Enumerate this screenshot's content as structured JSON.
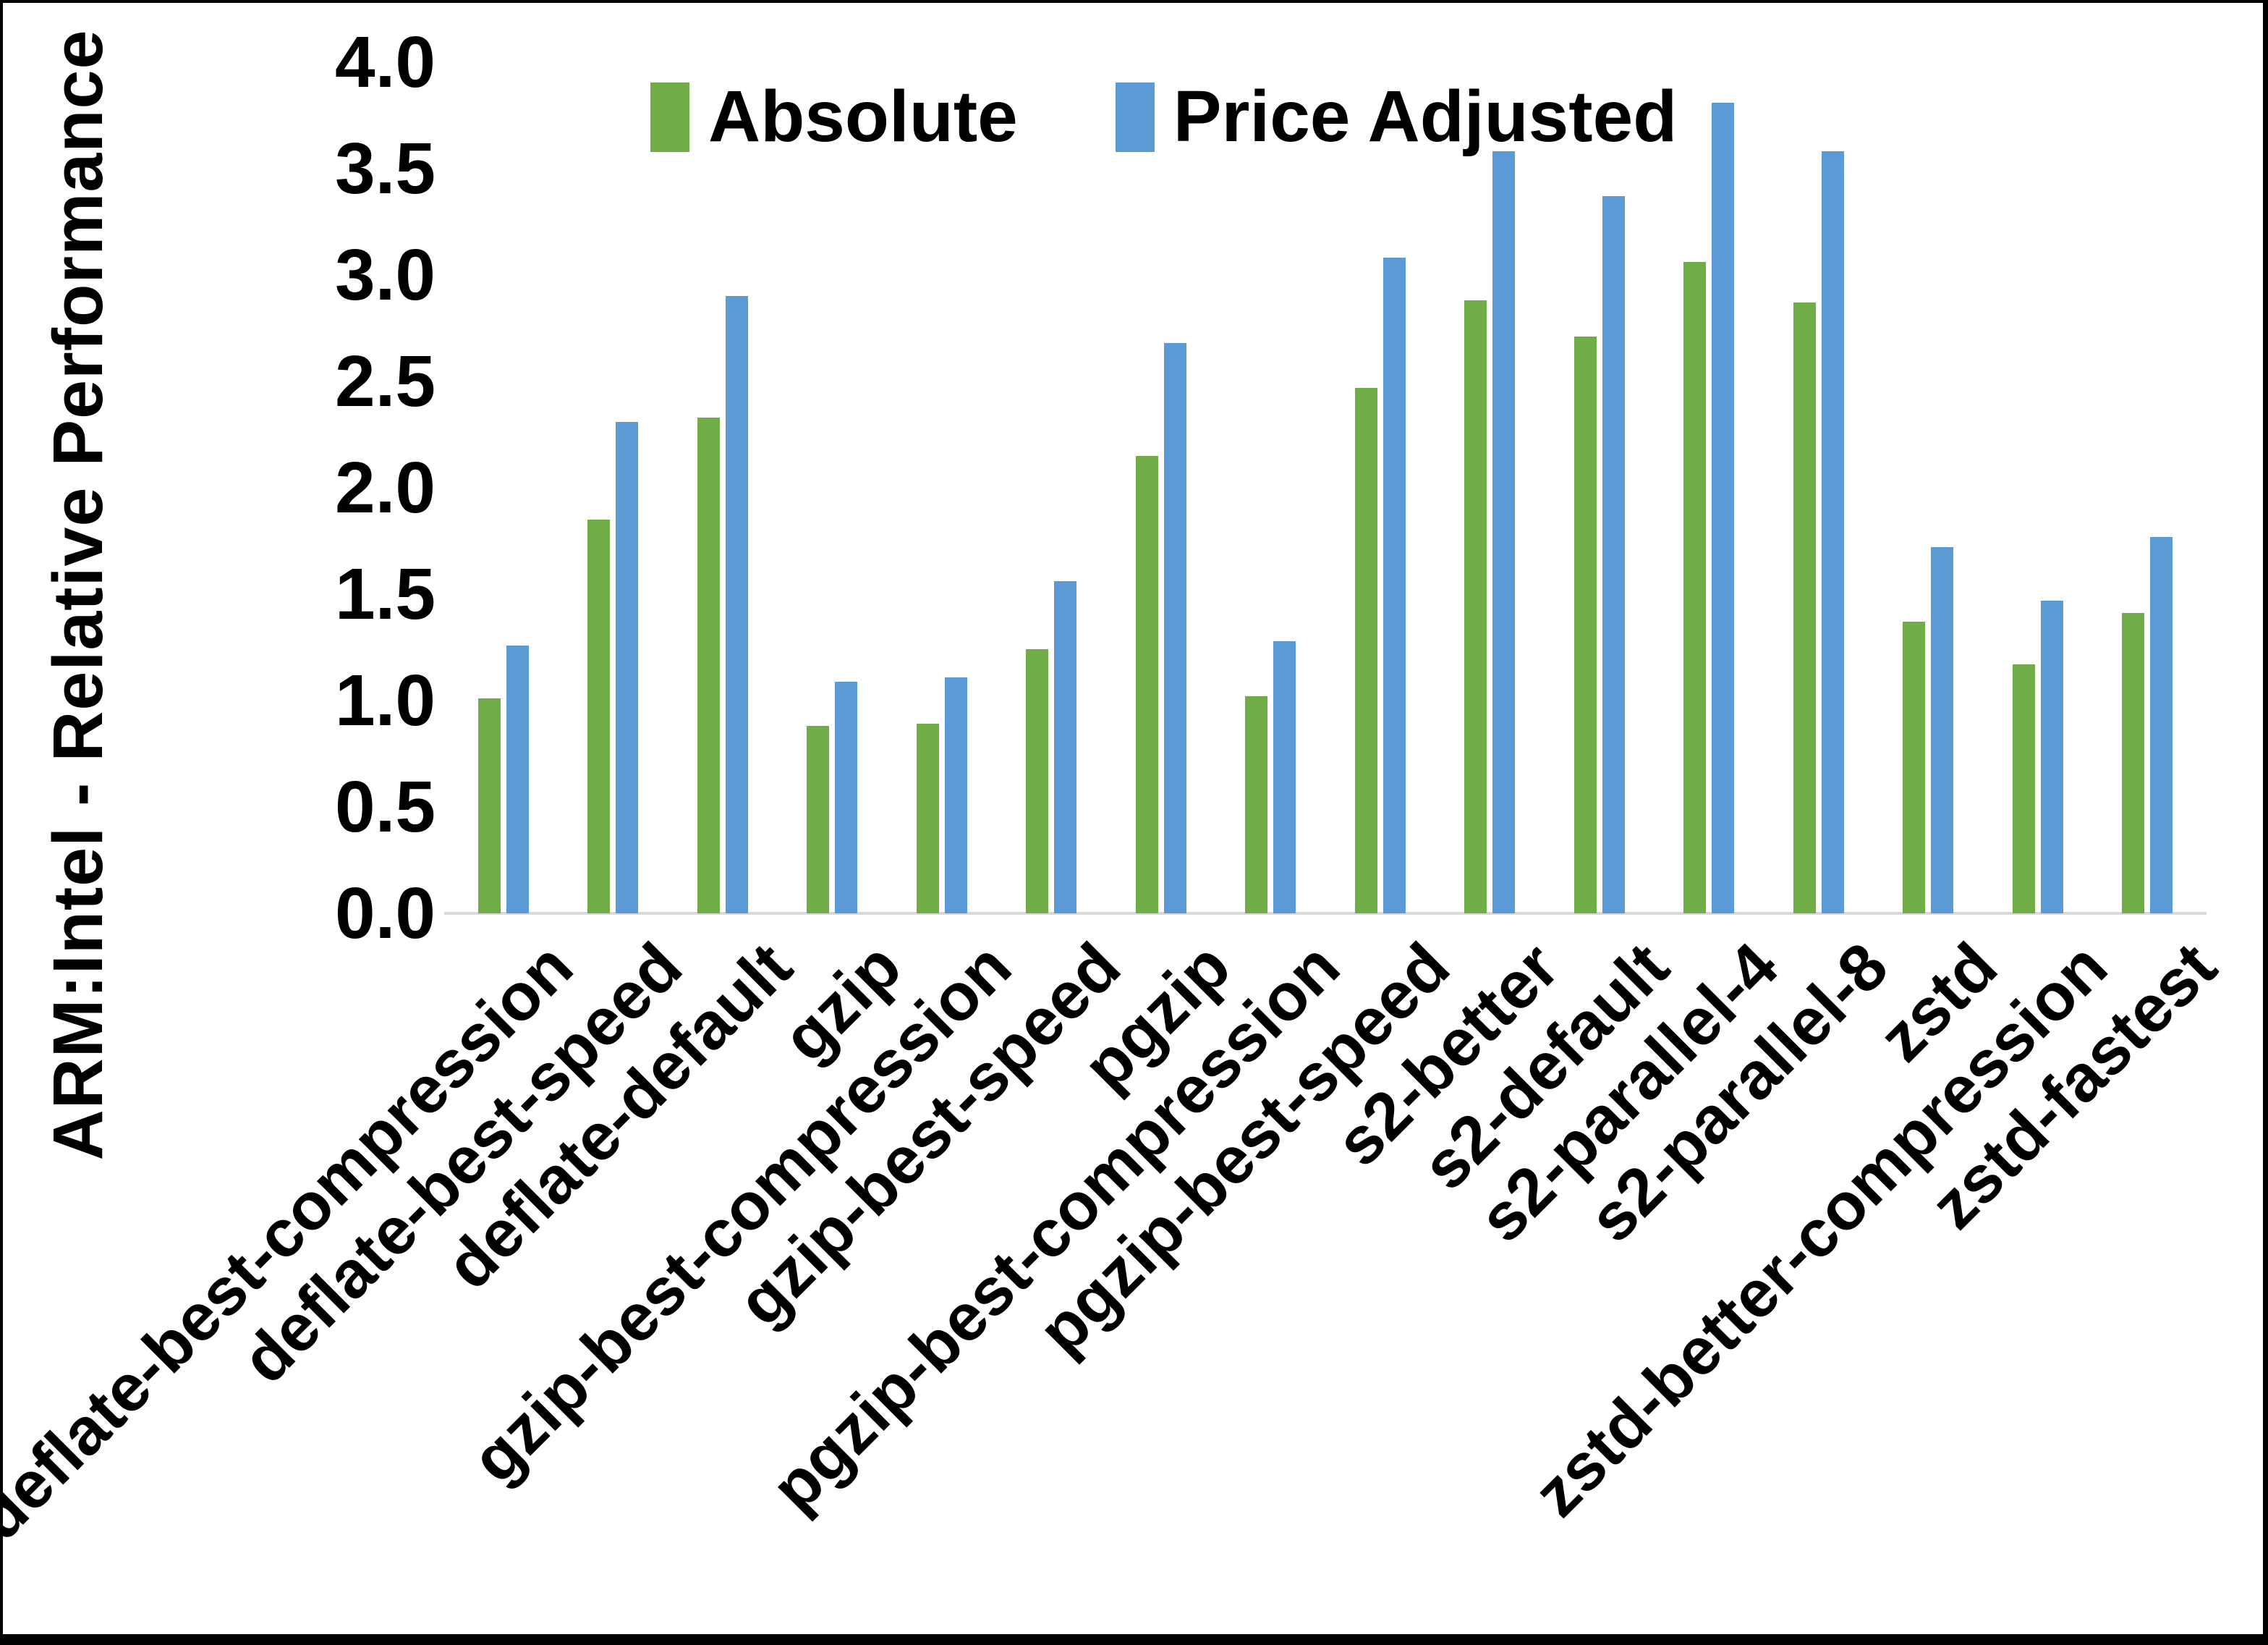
{
  "colors": {
    "absolute": "#70AD47",
    "price_adjusted": "#5B9BD5",
    "axis_line": "#D9D9D9",
    "frame_border": "#000000",
    "text": "#000000"
  },
  "y_axis": {
    "title": "ARM:Intel - Relative Performance",
    "min": 0.0,
    "max": 4.0,
    "step": 0.5,
    "tick_labels": [
      "0.0",
      "0.5",
      "1.0",
      "1.5",
      "2.0",
      "2.5",
      "3.0",
      "3.5",
      "4.0"
    ]
  },
  "legend": {
    "position": "top",
    "items": [
      {
        "label": "Absolute",
        "color": "#70AD47"
      },
      {
        "label": "Price Adjusted",
        "color": "#5B9BD5"
      }
    ]
  },
  "chart_data": {
    "type": "bar",
    "title": "",
    "xlabel": "",
    "ylabel": "ARM:Intel - Relative Performance",
    "ylim": [
      0.0,
      4.0
    ],
    "grid": false,
    "legend_position": "top",
    "categories": [
      "deflate-best-compression",
      "deflate-best-speed",
      "deflate-default",
      "gzip",
      "gzip-best-compression",
      "gzip-best-speed",
      "pgzip",
      "pgzip-best-compression",
      "pgzip-best-speed",
      "s2-better",
      "s2-default",
      "s2-parallel-4",
      "s2-parallel-8",
      "zstd",
      "zstd-better-compression",
      "zstd-fastest"
    ],
    "series": [
      {
        "name": "Absolute",
        "color": "#70AD47",
        "values": [
          1.01,
          1.85,
          2.33,
          0.88,
          0.89,
          1.24,
          2.15,
          1.02,
          2.47,
          2.88,
          2.71,
          3.06,
          2.87,
          1.37,
          1.17,
          1.41
        ]
      },
      {
        "name": "Price Adjusted",
        "color": "#5B9BD5",
        "values": [
          1.26,
          2.31,
          2.9,
          1.09,
          1.11,
          1.56,
          2.68,
          1.28,
          3.08,
          3.58,
          3.37,
          3.81,
          3.58,
          1.72,
          1.47,
          1.77
        ]
      }
    ]
  }
}
